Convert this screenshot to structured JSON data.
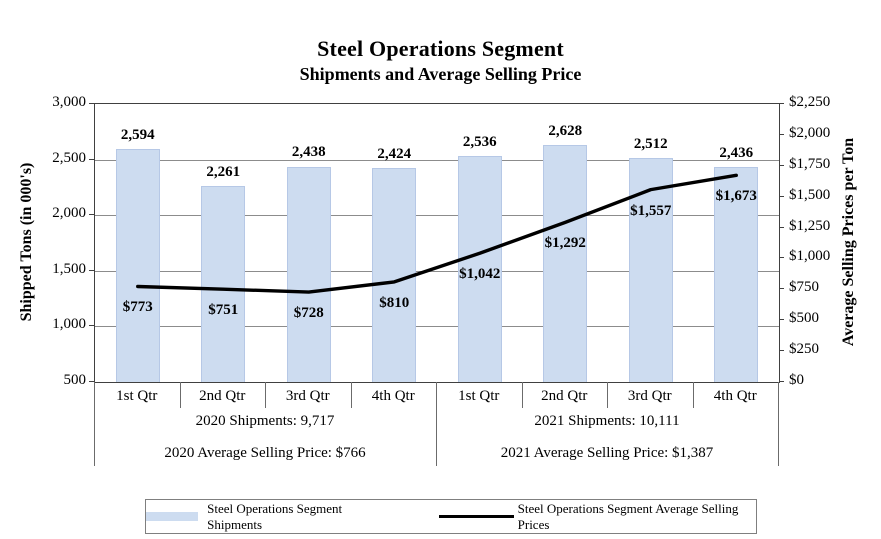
{
  "title": "Steel Operations Segment",
  "subtitle": "Shipments and Average Selling Price",
  "chart_data": {
    "type": "bar+line combo",
    "categories": [
      "1st Qtr",
      "2nd Qtr",
      "3rd Qtr",
      "4th Qtr",
      "1st Qtr",
      "2nd Qtr",
      "3rd Qtr",
      "4th Qtr"
    ],
    "series": [
      {
        "name": "Steel Operations Segment Shipments",
        "type": "bar",
        "axis": "left",
        "values": [
          2594,
          2261,
          2438,
          2424,
          2536,
          2628,
          2512,
          2436
        ],
        "labels": [
          "2,594",
          "2,261",
          "2,438",
          "2,424",
          "2,536",
          "2,628",
          "2,512",
          "2,436"
        ],
        "color": "#cddcf0"
      },
      {
        "name": "Steel Operations Segment Average Selling Prices",
        "type": "line",
        "axis": "right",
        "values": [
          773,
          751,
          728,
          810,
          1042,
          1292,
          1557,
          1673
        ],
        "labels": [
          "$773",
          "$751",
          "$728",
          "$810",
          "$1,042",
          "$1,292",
          "$1,557",
          "$1,673"
        ],
        "color": "#000000"
      }
    ],
    "left_axis": {
      "title": "Shipped Tons (in 000's)",
      "min": 500,
      "max": 3000,
      "step": 500,
      "ticks": [
        "3,000",
        "2,500",
        "2,000",
        "1,500",
        "1,000",
        "500"
      ]
    },
    "right_axis": {
      "title": "Average Selling Prices per Ton",
      "min": 0,
      "max": 2250,
      "step": 250,
      "ticks": [
        "$2,250",
        "$2,000",
        "$1,750",
        "$1,500",
        "$1,250",
        "$1,000",
        "$750",
        "$500",
        "$250",
        "$0"
      ]
    },
    "grid": true,
    "grid_color": "#8c8c8c",
    "legend_position": "bottom"
  },
  "annotations": {
    "left": {
      "row1": "2020 Shipments: 9,717",
      "row2": "2020 Average Selling Price: $766"
    },
    "right": {
      "row1": "2021 Shipments: 10,111",
      "row2": "2021 Average Selling Price: $1,387"
    }
  },
  "legend": {
    "items": [
      {
        "label": "Steel Operations Segment Shipments",
        "swatch": "bar",
        "color": "#cddcf0"
      },
      {
        "label": "Steel Operations Segment Average Selling Prices",
        "swatch": "line",
        "color": "#000000"
      }
    ]
  }
}
